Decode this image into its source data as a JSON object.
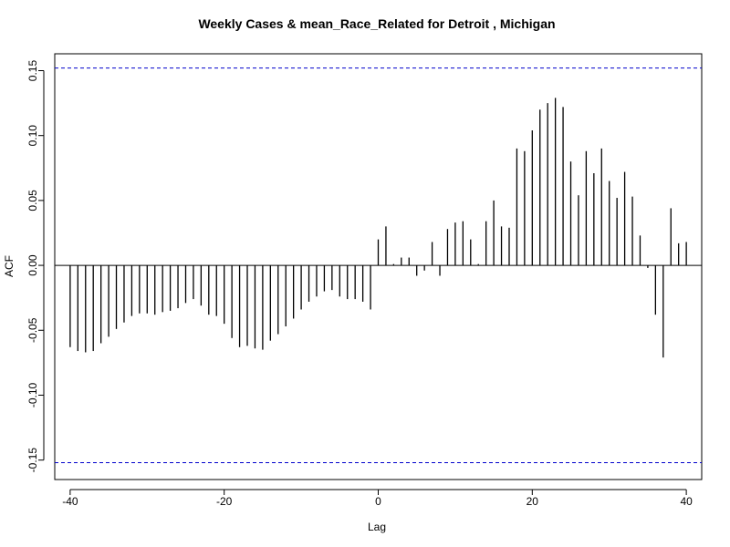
{
  "chart_data": {
    "type": "bar",
    "title": "Weekly Cases & mean_Race_Related for Detroit , Michigan",
    "xlabel": "Lag",
    "ylabel": "ACF",
    "xlim": [
      -42,
      42
    ],
    "ylim": [
      -0.165,
      0.163
    ],
    "x_ticks": [
      -40,
      -20,
      0,
      20,
      40
    ],
    "y_ticks": [
      -0.15,
      -0.1,
      -0.05,
      0.0,
      0.05,
      0.1,
      0.15
    ],
    "y_tick_labels": [
      "-0.15",
      "-0.10",
      "-0.05",
      "0.00",
      "0.05",
      "0.10",
      "0.15"
    ],
    "x_tick_labels": [
      "-40",
      "-20",
      "0",
      "20",
      "40"
    ],
    "confidence_band": 0.152,
    "confidence_color": "#0000cc",
    "bar_color": "#000000",
    "lags": [
      -40,
      -39,
      -38,
      -37,
      -36,
      -35,
      -34,
      -33,
      -32,
      -31,
      -30,
      -29,
      -28,
      -27,
      -26,
      -25,
      -24,
      -23,
      -22,
      -21,
      -20,
      -19,
      -18,
      -17,
      -16,
      -15,
      -14,
      -13,
      -12,
      -11,
      -10,
      -9,
      -8,
      -7,
      -6,
      -5,
      -4,
      -3,
      -2,
      -1,
      0,
      1,
      2,
      3,
      4,
      5,
      6,
      7,
      8,
      9,
      10,
      11,
      12,
      13,
      14,
      15,
      16,
      17,
      18,
      19,
      20,
      21,
      22,
      23,
      24,
      25,
      26,
      27,
      28,
      29,
      30,
      31,
      32,
      33,
      34,
      35,
      36,
      37,
      38,
      39,
      40
    ],
    "values": [
      -0.063,
      -0.066,
      -0.067,
      -0.066,
      -0.06,
      -0.055,
      -0.049,
      -0.044,
      -0.039,
      -0.037,
      -0.037,
      -0.038,
      -0.036,
      -0.035,
      -0.033,
      -0.029,
      -0.026,
      -0.031,
      -0.038,
      -0.039,
      -0.045,
      -0.056,
      -0.063,
      -0.062,
      -0.064,
      -0.065,
      -0.058,
      -0.053,
      -0.047,
      -0.041,
      -0.034,
      -0.028,
      -0.024,
      -0.02,
      -0.019,
      -0.024,
      -0.026,
      -0.026,
      -0.028,
      -0.034,
      0.02,
      0.03,
      0.001,
      0.006,
      0.006,
      -0.008,
      -0.004,
      0.018,
      -0.008,
      0.028,
      0.033,
      0.034,
      0.02,
      0.001,
      0.034,
      0.05,
      0.03,
      0.029,
      0.09,
      0.088,
      0.104,
      0.12,
      0.125,
      0.129,
      0.122,
      0.08,
      0.054,
      0.088,
      0.071,
      0.09,
      0.065,
      0.052,
      0.072,
      0.053,
      0.023,
      -0.002,
      -0.038,
      -0.071,
      0.044,
      0.017,
      0.018
    ]
  }
}
